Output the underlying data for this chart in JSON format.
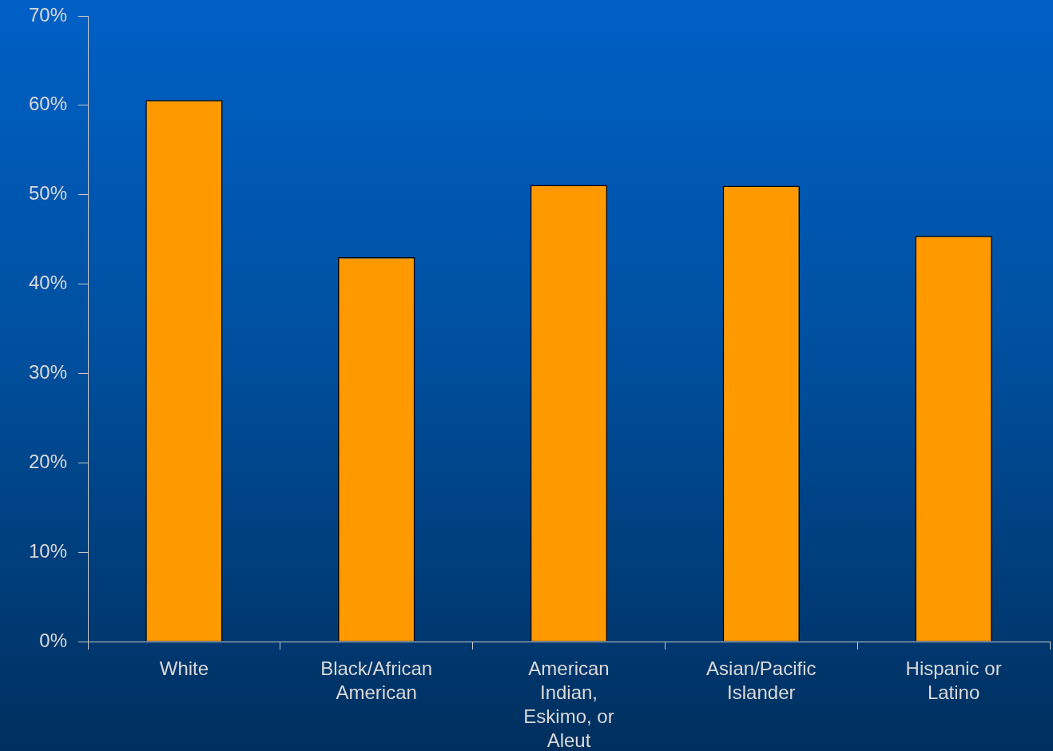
{
  "chart_data": {
    "type": "bar",
    "categories": [
      "White",
      "Black/African American",
      "American Indian, Eskimo, or Aleut",
      "Asian/Pacific Islander",
      "Hispanic or Latino"
    ],
    "values": [
      60.6,
      43.0,
      51.1,
      51.0,
      45.4
    ],
    "color": "#ff9900",
    "ylim": [
      0,
      70
    ],
    "yticks": [
      {
        "value": 0,
        "label": "0%"
      },
      {
        "value": 10,
        "label": "10%"
      },
      {
        "value": 20,
        "label": "20%"
      },
      {
        "value": 30,
        "label": "30%"
      },
      {
        "value": 40,
        "label": "40%"
      },
      {
        "value": 50,
        "label": "50%"
      },
      {
        "value": 60,
        "label": "60%"
      },
      {
        "value": 70,
        "label": "70%"
      }
    ]
  }
}
